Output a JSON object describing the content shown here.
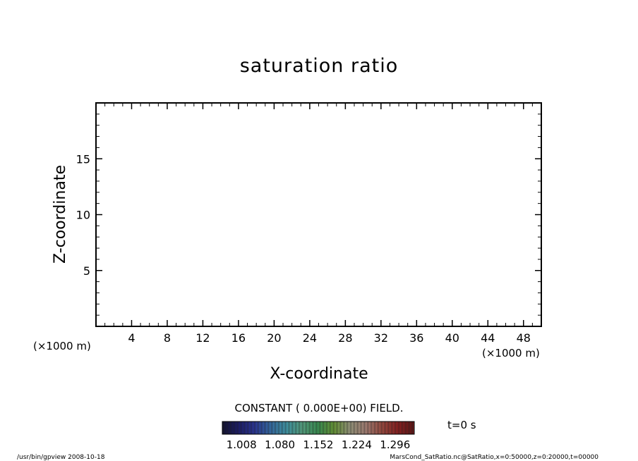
{
  "chart_data": {
    "type": "heatmap",
    "title": "saturation ratio",
    "xlabel": "X-coordinate",
    "ylabel": "Z-coordinate",
    "x_unit_left": "(×1000 m)",
    "x_unit_right": "(×1000 m)",
    "xlim": [
      0,
      50
    ],
    "ylim": [
      0,
      20
    ],
    "x_ticks": [
      4,
      8,
      12,
      16,
      20,
      24,
      28,
      32,
      36,
      40,
      44,
      48
    ],
    "y_ticks": [
      5,
      10,
      15
    ],
    "field_message": "CONSTANT ( 0.000E+00) FIELD.",
    "time_label": "t=0 s",
    "colorbar": {
      "range": [
        0.972,
        1.332
      ],
      "tick_values": [
        1.008,
        1.08,
        1.152,
        1.224,
        1.296
      ],
      "tick_labels": [
        "1.008",
        "1.080",
        "1.152",
        "1.224",
        "1.296"
      ],
      "colors": [
        "#0a0a3a",
        "#1a1a8c",
        "#2f3fd0",
        "#3f8fe6",
        "#4fd0e8",
        "#6fe0b0",
        "#46c86a",
        "#8ad040",
        "#d0d0a8",
        "#e8b0a0",
        "#d86050",
        "#c02020",
        "#801010"
      ]
    }
  },
  "footer": {
    "left": "/usr/bin/gpview   2008-10-18",
    "right": "MarsCond_SatRatio.nc@SatRatio,x=0:50000,z=0:20000,t=00000"
  }
}
